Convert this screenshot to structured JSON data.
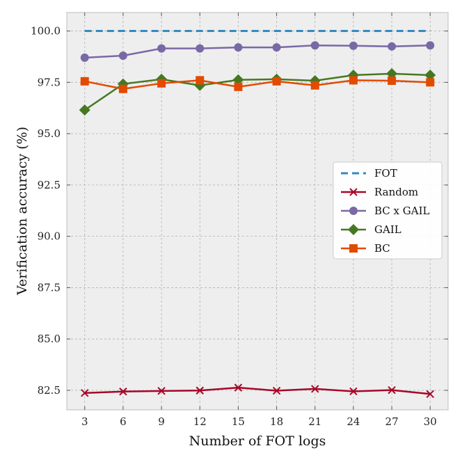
{
  "chart_data": {
    "type": "line",
    "title": "",
    "xlabel": "Number of FOT logs",
    "ylabel": "Verification accuracy (%)",
    "x": [
      3,
      6,
      9,
      12,
      15,
      18,
      21,
      24,
      27,
      30
    ],
    "x_tick_labels": [
      "3",
      "6",
      "9",
      "12",
      "15",
      "18",
      "21",
      "24",
      "27",
      "30"
    ],
    "y_ticks": [
      82.5,
      85.0,
      87.5,
      90.0,
      92.5,
      95.0,
      97.5,
      100.0
    ],
    "y_tick_labels": [
      "82.5",
      "85.0",
      "87.5",
      "90.0",
      "92.5",
      "95.0",
      "97.5",
      "100.0"
    ],
    "xlim": [
      1.6,
      31.4
    ],
    "ylim": [
      81.55,
      100.9
    ],
    "grid": true,
    "legend_position": "center-right",
    "series": [
      {
        "name": "FOT",
        "color": "#348abd",
        "marker": "none",
        "dashed": true,
        "values": [
          100.0,
          100.0,
          100.0,
          100.0,
          100.0,
          100.0,
          100.0,
          100.0,
          100.0,
          100.0
        ]
      },
      {
        "name": "Random",
        "color": "#a60628",
        "marker": "x",
        "dashed": false,
        "values": [
          82.37,
          82.44,
          82.47,
          82.49,
          82.63,
          82.48,
          82.57,
          82.45,
          82.51,
          82.32
        ]
      },
      {
        "name": "BC x GAIL",
        "color": "#7a68a6",
        "marker": "circle",
        "dashed": false,
        "values": [
          98.7,
          98.8,
          99.15,
          99.15,
          99.2,
          99.2,
          99.3,
          99.28,
          99.25,
          99.3
        ]
      },
      {
        "name": "GAIL",
        "color": "#467821",
        "marker": "diamond",
        "dashed": false,
        "values": [
          96.15,
          97.42,
          97.65,
          97.35,
          97.62,
          97.65,
          97.58,
          97.85,
          97.92,
          97.85
        ]
      },
      {
        "name": "BC",
        "color": "#e24a00",
        "marker": "square",
        "dashed": false,
        "values": [
          97.55,
          97.18,
          97.45,
          97.6,
          97.28,
          97.55,
          97.35,
          97.6,
          97.58,
          97.5
        ]
      }
    ]
  }
}
